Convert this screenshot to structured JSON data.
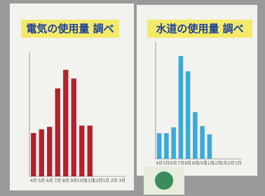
{
  "chart_data": [
    {
      "type": "bar",
      "title": "電気の使用量 調べ",
      "categories": [
        "4月",
        "5月",
        "6月",
        "7月",
        "8月",
        "9月",
        "10月",
        "11月",
        "12月",
        "1月",
        "2月",
        "3月"
      ],
      "values": [
        35,
        38,
        40,
        71,
        86,
        79,
        41,
        41,
        null,
        null,
        null,
        null
      ],
      "color": "#b3222c",
      "ylim": [
        0,
        100
      ]
    },
    {
      "type": "bar",
      "title": "水道の使用量 調べ",
      "categories": [
        "4月",
        "5月",
        "6月",
        "7月",
        "8月",
        "9月",
        "10月",
        "11月",
        "12月",
        "1月",
        "2月",
        "3月"
      ],
      "values": [
        22,
        22,
        27,
        88,
        75,
        40,
        28,
        21,
        null,
        null,
        null,
        null
      ],
      "color": "#3ba9dc",
      "ylim": [
        0,
        100
      ]
    }
  ]
}
